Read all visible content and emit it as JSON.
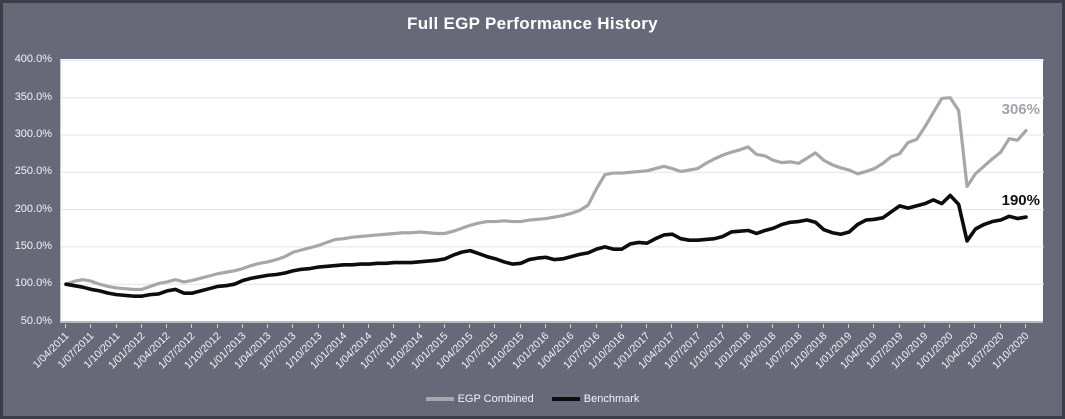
{
  "chart_data": {
    "type": "line",
    "title": "Full EGP Performance History",
    "frequency": "monthly",
    "start_period": "1/04/2011",
    "end_period": "1/10/2020",
    "grid": true,
    "legend_position": "bottom",
    "ylim": [
      50,
      400
    ],
    "y_tick_labels": [
      "400.0%",
      "350.0%",
      "300.0%",
      "250.0%",
      "200.0%",
      "150.0%",
      "100.0%",
      "50.0%"
    ],
    "x_tick_labels": [
      "1/04/2011",
      "1/07/2011",
      "1/10/2011",
      "1/01/2012",
      "1/04/2012",
      "1/07/2012",
      "1/10/2012",
      "1/01/2013",
      "1/04/2013",
      "1/07/2013",
      "1/10/2013",
      "1/01/2014",
      "1/04/2014",
      "1/07/2014",
      "1/10/2014",
      "1/01/2015",
      "1/04/2015",
      "1/07/2015",
      "1/10/2015",
      "1/01/2016",
      "1/04/2016",
      "1/07/2016",
      "1/10/2016",
      "1/01/2017",
      "1/04/2017",
      "1/07/2017",
      "1/10/2017",
      "1/01/2018",
      "1/04/2018",
      "1/07/2018",
      "1/10/2018",
      "1/01/2019",
      "1/04/2019",
      "1/07/2019",
      "1/10/2019",
      "1/01/2020",
      "1/04/2020",
      "1/07/2020",
      "1/10/2020"
    ],
    "series": [
      {
        "name": "EGP Combined",
        "color": "#a6a7ab",
        "end_label": "306%",
        "values": [
          100,
          104,
          106,
          104,
          100,
          97,
          95,
          94,
          93,
          93,
          97,
          101,
          103,
          106,
          103,
          105,
          108,
          111,
          114,
          116,
          118,
          121,
          125,
          128,
          130,
          133,
          137,
          143,
          146,
          149,
          152,
          156,
          160,
          161,
          163,
          164,
          165,
          166,
          167,
          168,
          169,
          169,
          170,
          169,
          168,
          168,
          171,
          175,
          179,
          182,
          184,
          184,
          185,
          184,
          184,
          186,
          187,
          188,
          190,
          192,
          195,
          199,
          206,
          228,
          247,
          249,
          249,
          250,
          251,
          252,
          255,
          258,
          255,
          251,
          253,
          255,
          262,
          268,
          273,
          277,
          280,
          284,
          274,
          272,
          266,
          263,
          264,
          262,
          269,
          276,
          266,
          260,
          256,
          253,
          248,
          251,
          255,
          262,
          271,
          275,
          290,
          294,
          311,
          330,
          349,
          350,
          333,
          231,
          248,
          258,
          268,
          277,
          295,
          293,
          306
        ]
      },
      {
        "name": "Benchmark",
        "color": "#0d0d0d",
        "end_label": "190%",
        "values": [
          100,
          98,
          96,
          93,
          91,
          88,
          86,
          85,
          84,
          84,
          86,
          87,
          91,
          93,
          88,
          88,
          91,
          94,
          97,
          98,
          100,
          105,
          108,
          110,
          112,
          113,
          115,
          118,
          120,
          121,
          123,
          124,
          125,
          126,
          126,
          127,
          127,
          128,
          128,
          129,
          129,
          129,
          130,
          131,
          132,
          134,
          139,
          143,
          145,
          141,
          137,
          134,
          130,
          127,
          128,
          133,
          135,
          136,
          133,
          134,
          137,
          140,
          142,
          147,
          150,
          147,
          147,
          154,
          156,
          155,
          161,
          166,
          167,
          161,
          159,
          159,
          160,
          161,
          164,
          170,
          171,
          172,
          168,
          172,
          175,
          180,
          183,
          184,
          186,
          183,
          173,
          169,
          167,
          170,
          180,
          186,
          187,
          189,
          197,
          205,
          202,
          205,
          208,
          213,
          208,
          219,
          207,
          158,
          174,
          180,
          184,
          186,
          191,
          188,
          190
        ]
      }
    ]
  },
  "colors": {
    "chrome_background": "#676979",
    "outer_border": "#3c3e47",
    "plot_background": "#ffffff",
    "gridline": "#dbe5f1",
    "axis_line": "#b3b9c4",
    "tick_mark": "#c9cdd7",
    "axis_text": "#f4f5f8",
    "title_text": "#ffffff",
    "egp_end_label": "#a2a4a9",
    "benchmark_end_label": "#111111"
  }
}
